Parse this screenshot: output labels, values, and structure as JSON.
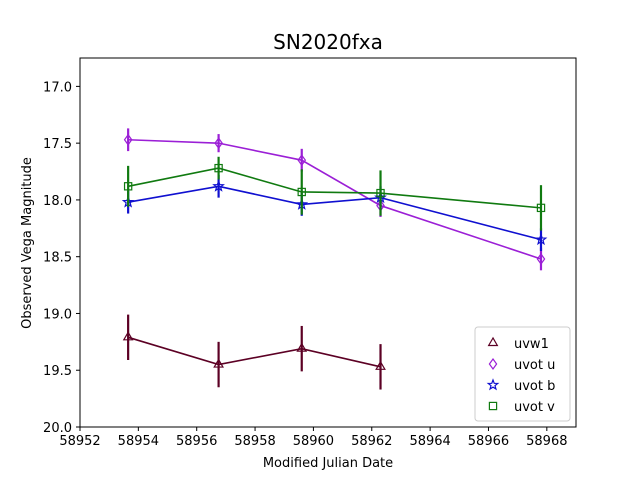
{
  "chart_data": {
    "type": "line",
    "title": "SN2020fxa",
    "xlabel": "Modified Julian Date",
    "ylabel": "Observed Vega Magnitude",
    "xlim": [
      58952,
      58969
    ],
    "ylim": [
      20.0,
      16.75
    ],
    "y_inverted": true,
    "grid": false,
    "legend_position": "lower-right",
    "xticks": [
      58952,
      58954,
      58956,
      58958,
      58960,
      58962,
      58964,
      58966,
      58968
    ],
    "xtick_labels": [
      "58952",
      "58954",
      "58956",
      "58958",
      "58960",
      "58962",
      "58964",
      "58966",
      "58968"
    ],
    "yticks": [
      17.0,
      17.5,
      18.0,
      18.5,
      19.0,
      19.5,
      20.0
    ],
    "ytick_labels": [
      "17.0",
      "17.5",
      "18.0",
      "18.5",
      "19.0",
      "19.5",
      "20.0"
    ],
    "series": [
      {
        "name": "uvw1",
        "color": "#5c0024",
        "marker": "triangle",
        "x": [
          58953.65,
          58956.75,
          58959.6,
          58962.3
        ],
        "y": [
          19.21,
          19.45,
          19.31,
          19.47
        ],
        "yerr": [
          0.2,
          0.2,
          0.2,
          0.2
        ]
      },
      {
        "name": "uvot u",
        "color": "#9b1fd6",
        "marker": "diamond",
        "x": [
          58953.65,
          58956.75,
          58959.6,
          58962.3,
          58967.8
        ],
        "y": [
          17.47,
          17.5,
          17.65,
          18.05,
          18.52
        ],
        "yerr": [
          0.1,
          0.08,
          0.1,
          0.1,
          0.1
        ]
      },
      {
        "name": "uvot b",
        "color": "#1010d0",
        "marker": "star",
        "x": [
          58953.65,
          58956.75,
          58959.6,
          58962.3,
          58967.8
        ],
        "y": [
          18.02,
          17.88,
          18.04,
          17.98,
          18.35
        ],
        "yerr": [
          0.1,
          0.1,
          0.1,
          0.1,
          0.1
        ]
      },
      {
        "name": "uvot v",
        "color": "#107a10",
        "marker": "square",
        "x": [
          58953.65,
          58956.75,
          58959.6,
          58962.3,
          58967.8
        ],
        "y": [
          17.88,
          17.72,
          17.93,
          17.94,
          18.07
        ],
        "yerr": [
          0.18,
          0.1,
          0.2,
          0.2,
          0.2
        ]
      }
    ]
  }
}
